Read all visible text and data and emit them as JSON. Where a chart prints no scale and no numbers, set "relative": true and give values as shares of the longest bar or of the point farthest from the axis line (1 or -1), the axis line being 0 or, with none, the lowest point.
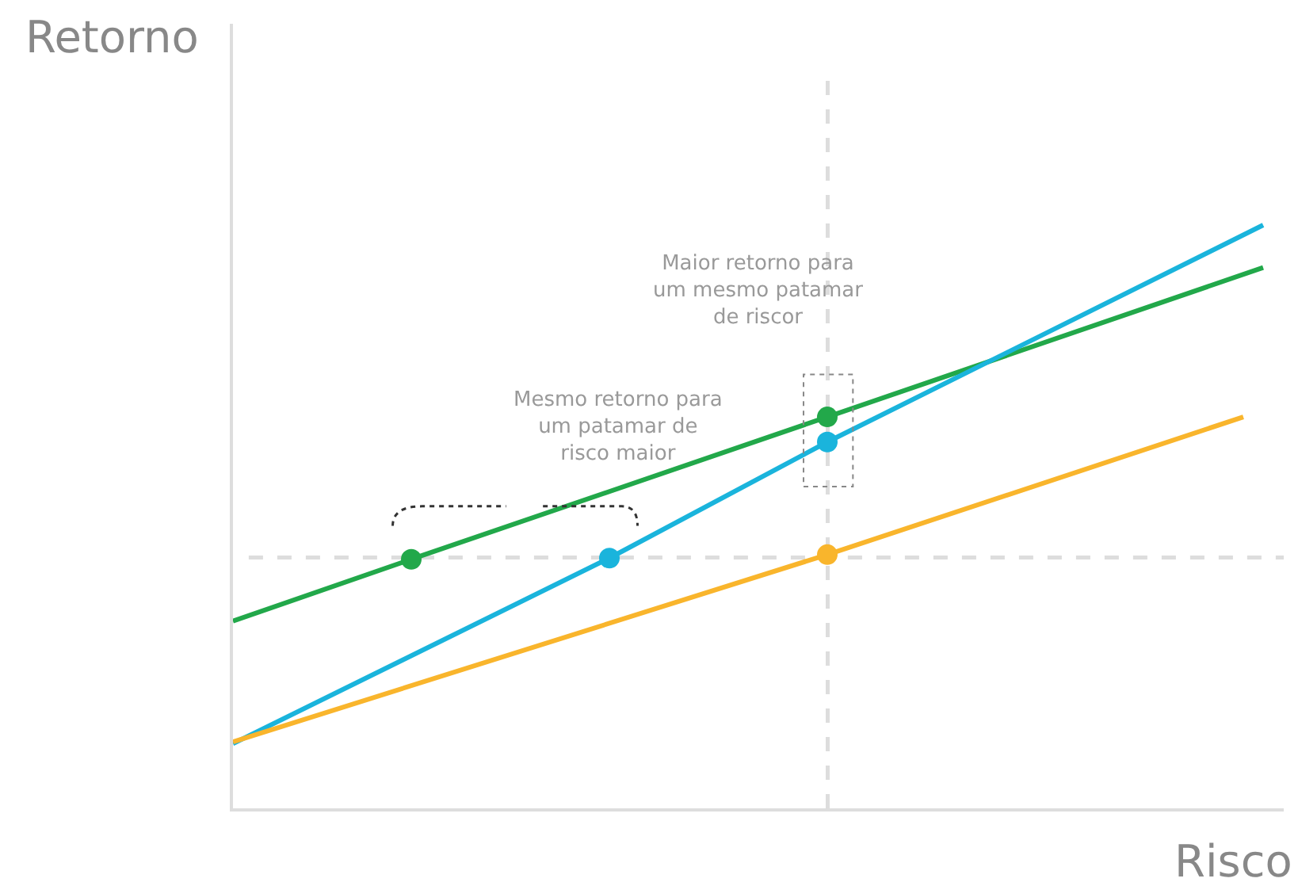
{
  "chart_data": {
    "type": "line",
    "relative": true,
    "xlabel": "Risco",
    "ylabel": "Retorno",
    "categories": [
      null,
      null,
      null,
      null,
      null,
      null,
      null,
      null,
      null,
      null,
      null,
      null,
      null,
      null,
      null,
      null,
      null,
      null,
      null,
      null,
      null,
      null,
      null,
      null,
      null,
      null,
      null,
      null,
      null,
      null,
      null,
      null,
      null,
      null,
      null,
      null,
      null,
      null,
      null,
      null,
      null,
      null,
      null,
      null,
      null,
      null,
      null,
      null,
      null,
      null,
      null,
      null,
      null,
      null
    ],
    "series": [
      {
        "color": "#22a84a",
        "marker": "circle",
        "values": [
          0.321,
          null,
          null,
          null,
          null,
          null,
          null,
          null,
          null,
          0.427,
          null,
          null,
          null,
          null,
          null,
          null,
          null,
          null,
          null,
          null,
          null,
          null,
          null,
          null,
          null,
          null,
          null,
          null,
          null,
          null,
          0.671,
          null,
          null,
          null,
          null,
          null,
          null,
          null,
          null,
          null,
          null,
          null,
          null,
          null,
          null,
          null,
          null,
          null,
          null,
          null,
          null,
          null,
          0.927,
          null
        ]
      },
      {
        "color": "#1ab4dc",
        "marker": "circle",
        "values": [
          0.111,
          null,
          null,
          null,
          null,
          null,
          null,
          null,
          null,
          null,
          null,
          null,
          null,
          null,
          null,
          null,
          null,
          null,
          null,
          0.429,
          null,
          null,
          null,
          null,
          null,
          null,
          null,
          null,
          null,
          null,
          0.628,
          null,
          null,
          null,
          null,
          null,
          null,
          null,
          null,
          null,
          null,
          null,
          null,
          null,
          null,
          null,
          null,
          null,
          null,
          null,
          null,
          null,
          1.0,
          null
        ]
      },
      {
        "color": "#f9b52c",
        "values": [
          0.114,
          null,
          null,
          null,
          null,
          null,
          null,
          null,
          null,
          null,
          null,
          null,
          null,
          null,
          null,
          null,
          null,
          null,
          null,
          null,
          null,
          null,
          null,
          null,
          null,
          null,
          null,
          null,
          null,
          null,
          0.435,
          null,
          null,
          null,
          null,
          null,
          null,
          null,
          null,
          null,
          null,
          null,
          null,
          null,
          null,
          null,
          null,
          null,
          null,
          null,
          null,
          0.671,
          null,
          null
        ]
      }
    ],
    "ref_lines": [
      {
        "axis": "y",
        "value": 0.43,
        "color": "#dddddd",
        "line_style": "dashed"
      }
    ],
    "annotations": [
      "Mesmo retorno para um patamar de risco maior",
      "Maior retorno para um mesmo patamar de riscor"
    ],
    "grid": false
  }
}
